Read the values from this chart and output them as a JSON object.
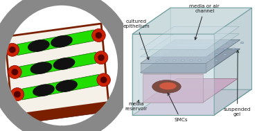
{
  "figure_width": 3.71,
  "figure_height": 1.89,
  "dpi": 100,
  "bg_color": "#ffffff",
  "labels": {
    "cultured_epithelium": "cultured\nepithelium",
    "media_or_air_channel": "media or air\nchannel",
    "media_reservoir": "media\nreservoir",
    "smcs": "SMCs",
    "suspended_gel": "suspended\ngel"
  },
  "label_color": "#1a1a1a",
  "label_fontsize": 5.2,
  "arrow_color": "#222222",
  "box_edge_color": "#5a9090",
  "chip_bg": "#f5f0e8",
  "chip_edge": "#7a2000",
  "green_channel": "#22dd00",
  "red_port": "#cc2200",
  "dark_port_inner": "#550000",
  "cell_color": "#111111",
  "floor_color": "#c8b8d4",
  "wall_left_color": "#c8d4d8",
  "wall_right_color": "#b8ccd0",
  "wall_front_color": "#d8e8ec",
  "wall_back_color": "#c0d0d4",
  "top_color": "#ccdce0",
  "reservoir_color": "#c8a8c4",
  "smc_dark": "#5a1000",
  "smc_red": "#cc2200",
  "gel_color": "#8a9aaa",
  "gel_dot_color": "#aabbc8",
  "air_channel_color": "#c0d4dc",
  "inner_wall_color": "#a8b8bc"
}
